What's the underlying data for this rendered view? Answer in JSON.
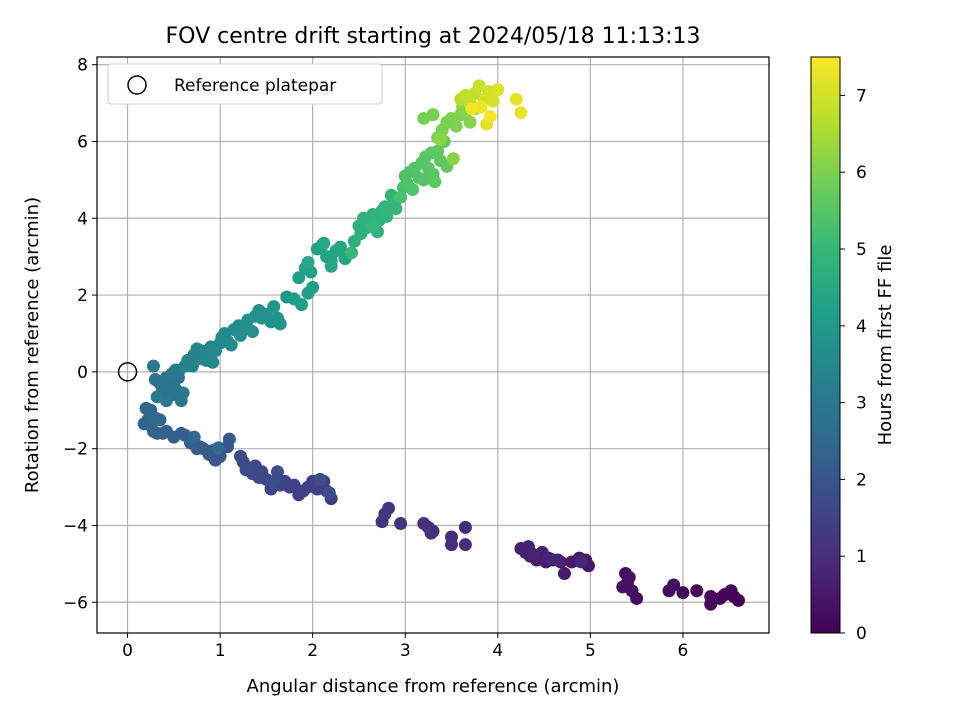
{
  "chart_data": {
    "type": "scatter",
    "title": "FOV centre drift starting at 2024/05/18 11:13:13",
    "xlabel": "Angular distance from reference (arcmin)",
    "ylabel": "Rotation from reference (arcmin)",
    "xlim": [
      -0.33,
      6.93
    ],
    "ylim": [
      -6.8,
      8.2
    ],
    "xticks": [
      "0",
      "1",
      "2",
      "3",
      "4",
      "5",
      "6"
    ],
    "xtick_values": [
      0,
      1,
      2,
      3,
      4,
      5,
      6
    ],
    "yticks": [
      "−6",
      "−4",
      "−2",
      "0",
      "2",
      "4",
      "6",
      "8"
    ],
    "ytick_values": [
      -6,
      -4,
      -2,
      0,
      2,
      4,
      6,
      8
    ],
    "grid": true,
    "legend": {
      "placement": "top-left",
      "entries": [
        {
          "label": "Reference platepar",
          "marker": "open-circle"
        }
      ]
    },
    "reference_point": {
      "x": 0,
      "y": 0
    },
    "colorbar": {
      "label": "Hours from first FF file",
      "range": [
        0,
        7.5
      ],
      "ticks": [
        "0",
        "1",
        "2",
        "3",
        "4",
        "5",
        "6",
        "7"
      ],
      "tick_values": [
        0,
        1,
        2,
        3,
        4,
        5,
        6,
        7
      ],
      "colormap": "viridis",
      "colors": [
        "#440154",
        "#482878",
        "#3e4989",
        "#31688e",
        "#26828e",
        "#1f9e89",
        "#35b779",
        "#6ece58",
        "#b5de2b",
        "#fde725"
      ]
    },
    "series_description": "Points colored by hours from first FF file",
    "points": [
      [
        6.6,
        -5.95,
        0.02
      ],
      [
        6.55,
        -5.85,
        0.04
      ],
      [
        6.52,
        -5.7,
        0.06
      ],
      [
        6.45,
        -5.8,
        0.08
      ],
      [
        6.4,
        -5.9,
        0.1
      ],
      [
        6.3,
        -6.05,
        0.12
      ],
      [
        6.3,
        -5.85,
        0.14
      ],
      [
        6.15,
        -5.7,
        0.16
      ],
      [
        6.0,
        -5.75,
        0.18
      ],
      [
        5.85,
        -5.7,
        0.2
      ],
      [
        5.9,
        -5.55,
        0.22
      ],
      [
        5.5,
        -5.9,
        0.25
      ],
      [
        5.45,
        -5.7,
        0.27
      ],
      [
        5.4,
        -5.5,
        0.29
      ],
      [
        5.35,
        -5.6,
        0.31
      ],
      [
        5.38,
        -5.25,
        0.33
      ],
      [
        5.42,
        -5.35,
        0.35
      ],
      [
        4.98,
        -5.05,
        0.45
      ],
      [
        4.95,
        -4.9,
        0.47
      ],
      [
        4.88,
        -4.85,
        0.49
      ],
      [
        4.8,
        -4.95,
        0.51
      ],
      [
        4.72,
        -5.25,
        0.53
      ],
      [
        4.68,
        -4.95,
        0.55
      ],
      [
        4.6,
        -4.9,
        0.57
      ],
      [
        4.52,
        -4.95,
        0.59
      ],
      [
        4.48,
        -4.7,
        0.61
      ],
      [
        4.42,
        -4.9,
        0.63
      ],
      [
        4.35,
        -4.8,
        0.65
      ],
      [
        4.3,
        -4.7,
        0.67
      ],
      [
        4.25,
        -4.6,
        0.69
      ],
      [
        4.33,
        -4.55,
        0.71
      ],
      [
        4.38,
        -4.75,
        0.73
      ],
      [
        4.55,
        -4.85,
        0.75
      ],
      [
        4.65,
        -4.9,
        0.77
      ],
      [
        4.9,
        -4.95,
        0.79
      ],
      [
        3.65,
        -4.5,
        0.95
      ],
      [
        3.65,
        -4.05,
        0.97
      ],
      [
        3.5,
        -4.3,
        0.99
      ],
      [
        3.5,
        -4.5,
        1.01
      ],
      [
        3.3,
        -4.15,
        1.03
      ],
      [
        3.25,
        -4.05,
        1.05
      ],
      [
        3.2,
        -3.95,
        1.07
      ],
      [
        3.28,
        -4.2,
        1.09
      ],
      [
        2.95,
        -3.95,
        1.11
      ],
      [
        2.82,
        -3.55,
        1.13
      ],
      [
        2.78,
        -3.7,
        1.15
      ],
      [
        2.75,
        -3.9,
        1.17
      ],
      [
        2.2,
        -3.3,
        1.35
      ],
      [
        2.15,
        -3.1,
        1.37
      ],
      [
        2.12,
        -2.85,
        1.39
      ],
      [
        2.05,
        -3.05,
        1.41
      ],
      [
        2.0,
        -2.85,
        1.43
      ],
      [
        1.95,
        -3.0,
        1.45
      ],
      [
        1.9,
        -3.1,
        1.47
      ],
      [
        1.85,
        -3.2,
        1.49
      ],
      [
        1.8,
        -2.95,
        1.51
      ],
      [
        1.75,
        -3.0,
        1.53
      ],
      [
        1.7,
        -2.85,
        1.55
      ],
      [
        1.65,
        -2.95,
        1.57
      ],
      [
        1.55,
        -3.05,
        1.59
      ],
      [
        1.5,
        -2.8,
        1.61
      ],
      [
        1.45,
        -2.6,
        1.63
      ],
      [
        1.42,
        -2.75,
        1.65
      ],
      [
        1.38,
        -2.45,
        1.67
      ],
      [
        1.35,
        -2.65,
        1.69
      ],
      [
        1.3,
        -2.5,
        1.71
      ],
      [
        1.25,
        -2.35,
        1.73
      ],
      [
        1.22,
        -2.2,
        1.75
      ],
      [
        1.28,
        -2.55,
        1.77
      ],
      [
        1.58,
        -2.85,
        1.79
      ],
      [
        1.62,
        -2.6,
        1.81
      ],
      [
        2.08,
        -2.8,
        1.83
      ],
      [
        2.18,
        -3.15,
        1.85
      ],
      [
        1.1,
        -1.75,
        2.05
      ],
      [
        1.08,
        -1.95,
        2.07
      ],
      [
        1.0,
        -2.2,
        2.09
      ],
      [
        0.95,
        -2.3,
        2.11
      ],
      [
        0.92,
        -2.05,
        2.13
      ],
      [
        0.88,
        -2.15,
        2.15
      ],
      [
        0.82,
        -2.0,
        2.17
      ],
      [
        0.78,
        -1.95,
        2.19
      ],
      [
        0.75,
        -2.0,
        2.21
      ],
      [
        0.68,
        -1.85,
        2.23
      ],
      [
        0.62,
        -1.65,
        2.25
      ],
      [
        0.58,
        -1.6,
        2.27
      ],
      [
        0.5,
        -1.7,
        2.29
      ],
      [
        0.42,
        -1.55,
        2.31
      ],
      [
        0.38,
        -1.6,
        2.33
      ],
      [
        0.32,
        -1.6,
        2.35
      ],
      [
        0.28,
        -1.55,
        2.37
      ],
      [
        0.25,
        -1.4,
        2.39
      ],
      [
        0.22,
        -1.25,
        2.41
      ],
      [
        0.18,
        -1.35,
        2.43
      ],
      [
        0.2,
        -0.95,
        2.45
      ],
      [
        0.25,
        -1.0,
        2.47
      ],
      [
        0.3,
        -1.2,
        2.49
      ],
      [
        0.35,
        -1.25,
        2.51
      ],
      [
        0.72,
        -1.7,
        2.53
      ],
      [
        0.98,
        -1.98,
        2.55
      ],
      [
        0.3,
        -0.2,
        2.75
      ],
      [
        0.35,
        -0.3,
        2.77
      ],
      [
        0.38,
        -0.45,
        2.79
      ],
      [
        0.4,
        -0.3,
        2.81
      ],
      [
        0.42,
        -0.15,
        2.83
      ],
      [
        0.45,
        -0.55,
        2.85
      ],
      [
        0.48,
        -0.6,
        2.87
      ],
      [
        0.5,
        -0.25,
        2.89
      ],
      [
        0.52,
        -0.45,
        2.91
      ],
      [
        0.55,
        -0.15,
        2.93
      ],
      [
        0.58,
        -0.75,
        2.95
      ],
      [
        0.6,
        -0.55,
        2.97
      ],
      [
        0.55,
        0.0,
        2.99
      ],
      [
        0.42,
        -0.75,
        3.01
      ],
      [
        0.32,
        -0.65,
        3.03
      ],
      [
        0.28,
        0.15,
        3.05
      ],
      [
        0.52,
        0.05,
        3.07
      ],
      [
        0.48,
        -0.05,
        3.09
      ],
      [
        0.62,
        0.15,
        3.3
      ],
      [
        0.65,
        0.3,
        3.32
      ],
      [
        0.7,
        0.15,
        3.34
      ],
      [
        0.72,
        0.45,
        3.36
      ],
      [
        0.75,
        0.6,
        3.38
      ],
      [
        0.78,
        0.35,
        3.4
      ],
      [
        0.8,
        0.55,
        3.42
      ],
      [
        0.85,
        0.3,
        3.44
      ],
      [
        0.88,
        0.5,
        3.46
      ],
      [
        0.9,
        0.65,
        3.48
      ],
      [
        0.92,
        0.25,
        3.5
      ],
      [
        0.95,
        0.55,
        3.52
      ],
      [
        1.0,
        0.75,
        3.54
      ],
      [
        1.02,
        0.9,
        3.56
      ],
      [
        1.05,
        1.0,
        3.58
      ],
      [
        1.08,
        0.8,
        3.6
      ],
      [
        1.12,
        0.7,
        3.62
      ],
      [
        1.15,
        1.1,
        3.64
      ],
      [
        1.2,
        1.2,
        3.66
      ],
      [
        1.22,
        0.95,
        3.68
      ],
      [
        1.25,
        1.15,
        3.7
      ],
      [
        1.3,
        1.35,
        3.72
      ],
      [
        1.35,
        1.05,
        3.74
      ],
      [
        1.38,
        1.45,
        3.76
      ],
      [
        1.42,
        1.6,
        3.78
      ],
      [
        1.45,
        1.4,
        3.8
      ],
      [
        1.5,
        1.5,
        3.82
      ],
      [
        1.55,
        1.3,
        3.84
      ],
      [
        1.58,
        1.7,
        3.86
      ],
      [
        1.62,
        1.4,
        3.88
      ],
      [
        1.65,
        1.25,
        3.9
      ],
      [
        1.72,
        1.95,
        3.92
      ],
      [
        1.8,
        1.9,
        4.15
      ],
      [
        1.88,
        1.75,
        4.17
      ],
      [
        1.95,
        2.05,
        4.19
      ],
      [
        2.0,
        2.2,
        4.21
      ],
      [
        1.85,
        2.45,
        4.23
      ],
      [
        1.92,
        2.7,
        4.25
      ],
      [
        1.98,
        2.6,
        4.27
      ],
      [
        2.05,
        3.2,
        4.29
      ],
      [
        2.1,
        3.3,
        4.31
      ],
      [
        2.15,
        3.0,
        4.33
      ],
      [
        2.2,
        2.9,
        4.35
      ],
      [
        2.25,
        3.15,
        4.37
      ],
      [
        2.3,
        3.25,
        4.39
      ],
      [
        2.35,
        2.95,
        4.41
      ],
      [
        2.2,
        2.75,
        4.43
      ],
      [
        2.12,
        3.35,
        4.45
      ],
      [
        1.95,
        2.85,
        4.47
      ],
      [
        2.45,
        3.4,
        4.7
      ],
      [
        2.5,
        3.8,
        4.72
      ],
      [
        2.52,
        3.6,
        4.74
      ],
      [
        2.55,
        4.0,
        4.76
      ],
      [
        2.58,
        3.75,
        4.78
      ],
      [
        2.6,
        3.9,
        4.8
      ],
      [
        2.65,
        4.1,
        4.82
      ],
      [
        2.7,
        3.65,
        4.84
      ],
      [
        2.72,
        3.95,
        4.86
      ],
      [
        2.75,
        4.2,
        4.88
      ],
      [
        2.78,
        4.3,
        4.9
      ],
      [
        2.8,
        4.05,
        4.92
      ],
      [
        2.85,
        4.6,
        4.94
      ],
      [
        2.88,
        4.4,
        4.96
      ],
      [
        2.9,
        4.25,
        4.98
      ],
      [
        2.65,
        3.8,
        5.0
      ],
      [
        2.42,
        3.1,
        5.02
      ],
      [
        2.95,
        4.55,
        5.3
      ],
      [
        2.98,
        4.8,
        5.32
      ],
      [
        3.0,
        5.1,
        5.34
      ],
      [
        3.02,
        4.9,
        5.36
      ],
      [
        3.05,
        5.2,
        5.38
      ],
      [
        3.08,
        4.75,
        5.4
      ],
      [
        3.1,
        5.3,
        5.42
      ],
      [
        3.15,
        5.05,
        5.44
      ],
      [
        3.18,
        5.45,
        5.46
      ],
      [
        3.2,
        5.0,
        5.48
      ],
      [
        3.22,
        5.6,
        5.5
      ],
      [
        3.25,
        5.3,
        5.52
      ],
      [
        3.28,
        5.7,
        5.54
      ],
      [
        3.3,
        5.15,
        5.56
      ],
      [
        3.32,
        4.95,
        5.58
      ],
      [
        3.35,
        5.75,
        5.6
      ],
      [
        3.38,
        5.5,
        5.62
      ],
      [
        3.42,
        6.0,
        5.64
      ],
      [
        3.45,
        5.35,
        5.66
      ],
      [
        3.2,
        6.6,
        5.9
      ],
      [
        3.3,
        6.7,
        5.92
      ],
      [
        3.35,
        6.1,
        5.94
      ],
      [
        3.4,
        6.3,
        5.96
      ],
      [
        3.45,
        6.5,
        5.98
      ],
      [
        3.5,
        6.6,
        6.0
      ],
      [
        3.55,
        6.4,
        6.02
      ],
      [
        3.6,
        6.7,
        6.04
      ],
      [
        3.62,
        6.9,
        6.06
      ],
      [
        3.65,
        6.75,
        6.08
      ],
      [
        3.7,
        6.5,
        6.1
      ],
      [
        3.75,
        6.85,
        6.12
      ],
      [
        3.52,
        5.55,
        6.14
      ],
      [
        3.38,
        6.05,
        6.16
      ],
      [
        3.6,
        7.1,
        6.7
      ],
      [
        3.65,
        7.2,
        6.75
      ],
      [
        3.7,
        7.0,
        6.8
      ],
      [
        3.75,
        7.25,
        6.85
      ],
      [
        3.8,
        7.45,
        6.9
      ],
      [
        3.85,
        7.1,
        6.95
      ],
      [
        3.9,
        7.3,
        7.0
      ],
      [
        3.95,
        7.05,
        7.05
      ],
      [
        4.0,
        7.35,
        7.1
      ],
      [
        3.88,
        6.45,
        7.15
      ],
      [
        4.2,
        7.1,
        7.2
      ],
      [
        4.25,
        6.75,
        7.25
      ],
      [
        3.82,
        6.9,
        7.3
      ],
      [
        3.72,
        6.85,
        7.35
      ],
      [
        3.92,
        6.65,
        7.4
      ]
    ]
  }
}
